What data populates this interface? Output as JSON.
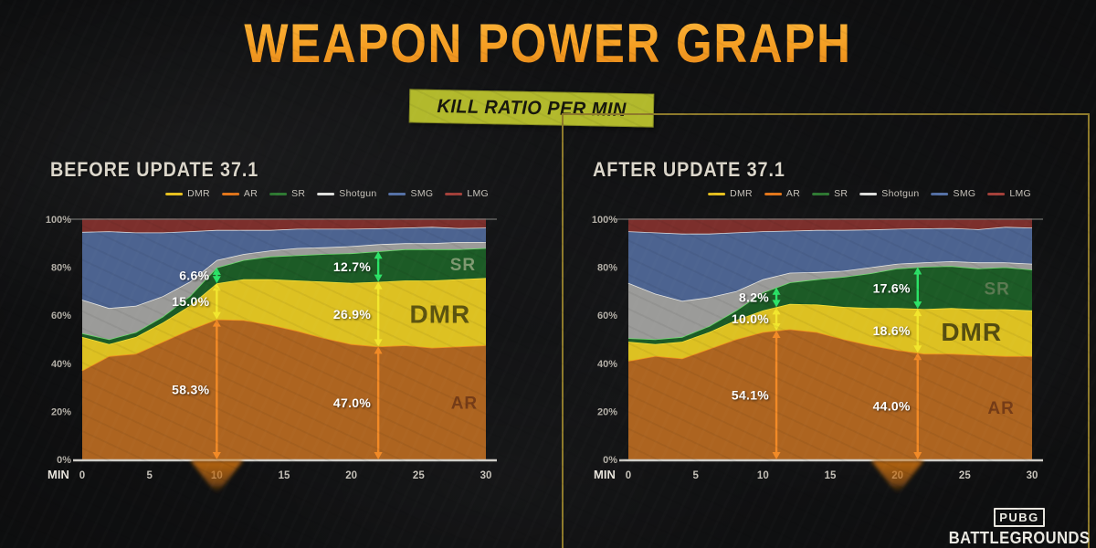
{
  "page": {
    "title": "WEAPON POWER GRAPH",
    "subtitle": "KILL RATIO PER MIN"
  },
  "branding": {
    "logo_top": "PUBG",
    "logo_bottom": "BATTLEGROUNDS"
  },
  "colors": {
    "title_gradient_top": "#ffbd42",
    "title_gradient_bottom": "#df7e18",
    "badge_bg": "#b2b92c",
    "badge_text": "#17170d",
    "panel_frame": "#8e7a2b",
    "axis_line": "#cfcdc8",
    "gridline_100": "#6f6f6d",
    "y_tick_text": "#b3afa7",
    "x_tick_text": "#c6c2ba",
    "min_label_text": "#e8e4dc",
    "annotation_text": "#ffffff",
    "marker_fill": "#c06a12"
  },
  "legend": [
    {
      "label": "DMR",
      "color": "#e7c01f"
    },
    {
      "label": "AR",
      "color": "#e2761b"
    },
    {
      "label": "SR",
      "color": "#2f7a33"
    },
    {
      "label": "Shotgun",
      "color": "#dededc"
    },
    {
      "label": "SMG",
      "color": "#5571a6"
    },
    {
      "label": "LMG",
      "color": "#a4403a"
    }
  ],
  "chart_data": [
    {
      "id": "before",
      "type": "area",
      "stacked": true,
      "title": "BEFORE UPDATE 37.1",
      "x_label": "MIN",
      "x_ticks": [
        0,
        5,
        10,
        15,
        20,
        25,
        30
      ],
      "y_ticks_pct": [
        0,
        20,
        40,
        60,
        80,
        100
      ],
      "y_range": [
        0,
        100
      ],
      "minutes": [
        0,
        2,
        4,
        6,
        8,
        10,
        12,
        14,
        16,
        18,
        20,
        22,
        24,
        26,
        28,
        30
      ],
      "series": [
        {
          "name": "AR",
          "fill": "#ad6420",
          "stroke": "#ef8e1e",
          "values": [
            37,
            43,
            44,
            49,
            54,
            58.3,
            58,
            56,
            53.5,
            50.5,
            48,
            47,
            47.5,
            46.5,
            47,
            47.5
          ]
        },
        {
          "name": "DMR",
          "fill": "#ddc122",
          "stroke": "#f2df38",
          "values": [
            14,
            5,
            7,
            8,
            10,
            15,
            17,
            19,
            21,
            23.5,
            25.5,
            26.9,
            27,
            28,
            28,
            28
          ]
        },
        {
          "name": "SR",
          "fill": "#1c5b26",
          "stroke": "#6ddc6d",
          "values": [
            1.5,
            2,
            2,
            2.5,
            4,
            6.6,
            8,
            9.5,
            10.5,
            11.5,
            12.3,
            12.7,
            13,
            13,
            12.5,
            12.5
          ]
        },
        {
          "name": "Shotgun",
          "fill": "#9b9b99",
          "stroke": "#e6e6e4",
          "values": [
            14,
            13,
            11,
            8.5,
            6,
            3.1,
            2.5,
            2.5,
            3,
            2.8,
            3,
            3,
            2.5,
            2.5,
            3,
            2.5
          ]
        },
        {
          "name": "SMG",
          "fill": "#4c6390",
          "stroke": "#d9dade",
          "values": [
            28.2,
            32,
            30.5,
            26.5,
            21,
            12.5,
            10,
            8.5,
            8,
            7.7,
            7.2,
            6.6,
            6.5,
            6.8,
            5.8,
            6
          ]
        },
        {
          "name": "LMG",
          "fill": "#7c2f2c",
          "stroke": "#8d4340",
          "values": [
            5.3,
            5,
            5.5,
            5.5,
            5,
            4.5,
            4.5,
            4.5,
            4,
            4,
            4,
            3.8,
            3.5,
            3.2,
            3.7,
            3.5
          ]
        }
      ],
      "annotations": [
        {
          "series": "SR",
          "label": "6.6%",
          "min": 10,
          "arrow_color": "#2ce468"
        },
        {
          "series": "DMR",
          "label": "15.0%",
          "min": 10,
          "arrow_color": "#f2e62e"
        },
        {
          "series": "AR",
          "label": "58.3%",
          "min": 10,
          "arrow_color": "#f28a26"
        },
        {
          "series": "SR",
          "label": "12.7%",
          "min": 22,
          "arrow_color": "#2ce468"
        },
        {
          "series": "DMR",
          "label": "26.9%",
          "min": 22,
          "arrow_color": "#f2e62e"
        },
        {
          "series": "AR",
          "label": "47.0%",
          "min": 22,
          "arrow_color": "#f28a26"
        }
      ],
      "area_labels": [
        {
          "text": "SR",
          "series": "SR",
          "min": 28.3,
          "color": "#7f9a71",
          "size": 19
        },
        {
          "text": "DMR",
          "series": "DMR",
          "min": 26.6,
          "color": "#5d5410",
          "size": 28
        },
        {
          "text": "AR",
          "series": "AR",
          "min": 28.4,
          "color": "#753c17",
          "size": 19
        }
      ],
      "marker_min": 10
    },
    {
      "id": "after",
      "type": "area",
      "stacked": true,
      "title": "AFTER UPDATE 37.1",
      "x_label": "MIN",
      "x_ticks": [
        0,
        5,
        10,
        15,
        20,
        25,
        30
      ],
      "y_ticks_pct": [
        0,
        20,
        40,
        60,
        80,
        100
      ],
      "y_range": [
        0,
        100
      ],
      "minutes": [
        0,
        2,
        4,
        6,
        8,
        10,
        12,
        14,
        16,
        18,
        20,
        22,
        24,
        26,
        28,
        30
      ],
      "series": [
        {
          "name": "AR",
          "fill": "#ad6420",
          "stroke": "#ef8e1e",
          "values": [
            41,
            43,
            42,
            46,
            50,
            53,
            54.2,
            53,
            50,
            47.5,
            45.5,
            44,
            44,
            43.5,
            43,
            43
          ]
        },
        {
          "name": "DMR",
          "fill": "#ddc122",
          "stroke": "#f2df38",
          "values": [
            8,
            5,
            7,
            7,
            8,
            9,
            10.5,
            11.5,
            13.5,
            15.5,
            17.5,
            18.6,
            19,
            19,
            19.5,
            19
          ]
        },
        {
          "name": "SR",
          "fill": "#1c5b26",
          "stroke": "#6ddc6d",
          "values": [
            1.5,
            2,
            2,
            2.5,
            4,
            7.5,
            9,
            10.5,
            12.5,
            14.5,
            16.5,
            17.6,
            17.5,
            17,
            17.5,
            17
          ]
        },
        {
          "name": "Shotgun",
          "fill": "#9b9b99",
          "stroke": "#e6e6e4",
          "values": [
            23,
            19,
            15,
            12,
            8,
            5.5,
            4,
            3,
            2.5,
            2.5,
            2,
            1.8,
            2,
            2.5,
            2,
            2.5
          ]
        },
        {
          "name": "SMG",
          "fill": "#4c6390",
          "stroke": "#d9dade",
          "values": [
            21.5,
            25.5,
            28,
            26.5,
            24.5,
            20,
            17.5,
            17.5,
            17,
            15.7,
            14.5,
            14.2,
            13.8,
            13.8,
            14.8,
            15
          ]
        },
        {
          "name": "LMG",
          "fill": "#7c2f2c",
          "stroke": "#8d4340",
          "values": [
            5,
            5.5,
            6,
            6,
            5.5,
            5,
            4.8,
            4.5,
            4.5,
            4.3,
            4,
            3.8,
            3.7,
            4.2,
            3.2,
            3.5
          ]
        }
      ],
      "annotations": [
        {
          "series": "SR",
          "label": "8.2%",
          "min": 11,
          "arrow_color": "#2ce468"
        },
        {
          "series": "DMR",
          "label": "10.0%",
          "min": 11,
          "arrow_color": "#f2e62e"
        },
        {
          "series": "AR",
          "label": "54.1%",
          "min": 11,
          "arrow_color": "#f28a26"
        },
        {
          "series": "SR",
          "label": "17.6%",
          "min": 21.5,
          "arrow_color": "#2ce468"
        },
        {
          "series": "DMR",
          "label": "18.6%",
          "min": 21.5,
          "arrow_color": "#f2e62e"
        },
        {
          "series": "AR",
          "label": "44.0%",
          "min": 21.5,
          "arrow_color": "#f28a26"
        }
      ],
      "area_labels": [
        {
          "text": "SR",
          "series": "SR",
          "min": 27.4,
          "color": "#5c7a52",
          "size": 19
        },
        {
          "text": "DMR",
          "series": "DMR",
          "min": 25.5,
          "color": "#554d10",
          "size": 28
        },
        {
          "text": "AR",
          "series": "AR",
          "min": 27.7,
          "color": "#753c17",
          "size": 19
        }
      ],
      "marker_min": 20
    }
  ]
}
